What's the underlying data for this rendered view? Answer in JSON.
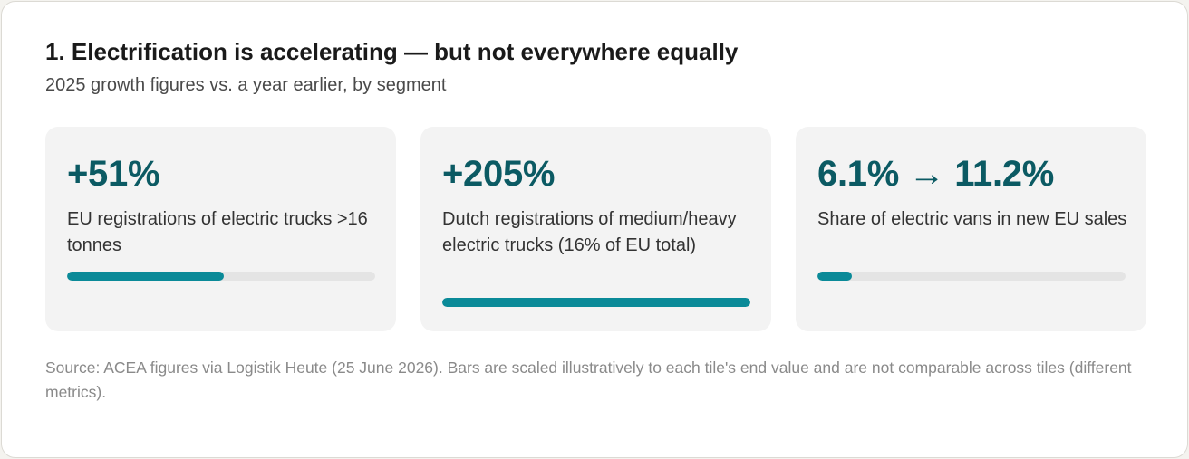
{
  "header": {
    "title": "1. Electrification is accelerating — but not everywhere equally",
    "subtitle": "2025 growth figures vs. a year earlier, by segment"
  },
  "tiles": [
    {
      "value": "+51%",
      "label": "EU registrations of electric trucks >16 tonnes",
      "bar_fraction": 0.51
    },
    {
      "value": "+205%",
      "label": "Dutch registrations of medium/heavy electric trucks (16% of EU total)",
      "bar_fraction": 1.0
    },
    {
      "value": "6.1% → 11.2%",
      "label": "Share of electric vans in new EU sales",
      "bar_fraction": 0.112
    }
  ],
  "footer": {
    "source": "Source: ACEA figures via Logistik Heute (25 June 2026). Bars are scaled illustratively to each tile's end value and are not comparable across tiles (different metrics)."
  },
  "colors": {
    "accent": "#0a8a98",
    "value_text": "#0b5a63",
    "track": "#e4e4e4",
    "tile_bg": "#f3f3f3"
  }
}
